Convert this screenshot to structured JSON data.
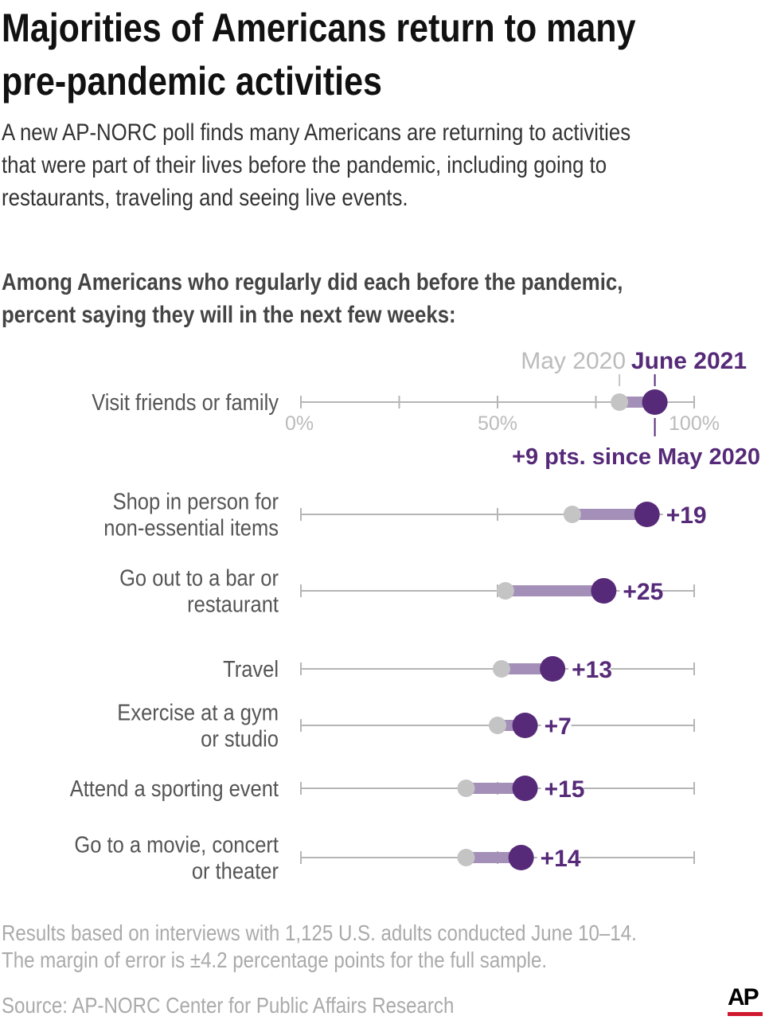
{
  "title_lines": [
    "Majorities of Americans return to many",
    "pre-pandemic activities"
  ],
  "subtitle_lines": [
    "A new AP-NORC poll finds many Americans are returning to activities",
    "that were part of their lives before the pandemic, including going to",
    "restaurants, traveling and seeing live events."
  ],
  "question_lines": [
    "Among Americans who regularly did each before the pandemic,",
    "percent saying they will in the next few weeks:"
  ],
  "notes_lines": [
    "Results based on interviews with 1,125 U.S. adults conducted June 10–14.",
    "The margin of error is ±4.2 percentage points for the full sample."
  ],
  "source": "Source: AP-NORC Center for Public Affairs Research",
  "logo": "AP",
  "colors": {
    "may2020": "#c4c4c4",
    "june2021": "#562a78",
    "connector": "#a48fb8",
    "axis": "#b5b5b5",
    "brand_red": "#d0182f"
  },
  "chart_data": {
    "type": "dumbbell",
    "xlim": [
      0,
      100
    ],
    "tick_labels": [
      "0%",
      "50%",
      "100%"
    ],
    "legend": {
      "old": "May 2020",
      "new": "June 2021",
      "change_note": "+9 pts. since May 2020"
    },
    "rows": [
      {
        "label": [
          "Visit friends or family"
        ],
        "may2020": 81,
        "june2021": 90,
        "change": "+9"
      },
      {
        "label": [
          "Shop in person for",
          "non-essential items"
        ],
        "may2020": 69,
        "june2021": 88,
        "change": "+19"
      },
      {
        "label": [
          "Go out to a bar or",
          "restaurant"
        ],
        "may2020": 52,
        "june2021": 77,
        "change": "+25"
      },
      {
        "label": [
          "Travel"
        ],
        "may2020": 51,
        "june2021": 64,
        "change": "+13"
      },
      {
        "label": [
          "Exercise at a gym",
          "or studio"
        ],
        "may2020": 50,
        "june2021": 57,
        "change": "+7"
      },
      {
        "label": [
          "Attend a sporting event"
        ],
        "may2020": 42,
        "june2021": 57,
        "change": "+15"
      },
      {
        "label": [
          "Go to a movie, concert",
          "or theater"
        ],
        "may2020": 42,
        "june2021": 56,
        "change": "+14"
      }
    ]
  }
}
